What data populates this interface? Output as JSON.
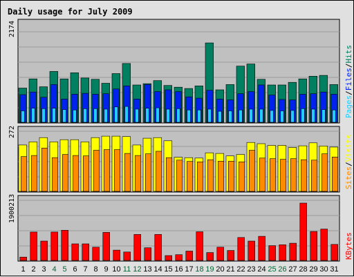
{
  "colors": {
    "frame_bg": "#e0e0e0",
    "panel_bg": "#c0c0c0",
    "grid": "#9a9a9a",
    "title": "#0000cc",
    "hits": "#008060",
    "files": "#0022ee",
    "pages": "#22ccff",
    "visits": "#ffff00",
    "sites": "#ff8c00",
    "kbytes": "#ff0000",
    "weekend_label": "#006633",
    "weekday_label": "#000000"
  },
  "labels": {
    "title": "Daily usage for July 2009",
    "max_hits": "2174",
    "max_visits": "272",
    "max_kbytes": "1900213",
    "pages": "Pages",
    "files": "Files",
    "hits": "Hits",
    "sites": "Sites",
    "visits": "Visits",
    "kbytes": "KBytes",
    "slash": "/"
  },
  "chart_data": {
    "type": "bar",
    "title": "Daily usage for July 2009",
    "categories": [
      "1",
      "2",
      "3",
      "4",
      "5",
      "6",
      "7",
      "8",
      "9",
      "10",
      "11",
      "12",
      "13",
      "14",
      "15",
      "16",
      "17",
      "18",
      "19",
      "20",
      "21",
      "22",
      "23",
      "24",
      "25",
      "26",
      "27",
      "28",
      "29",
      "30",
      "31"
    ],
    "weekend_days": [
      4,
      5,
      11,
      12,
      18,
      19,
      25,
      26
    ],
    "panels": [
      {
        "name": "hits-files-pages",
        "ymax": 2174,
        "ymax_label": "2174",
        "series": [
          {
            "name": "Hits",
            "values": [
              780,
              990,
              810,
              1160,
              990,
              1130,
              1010,
              980,
              890,
              1110,
              1340,
              850,
              880,
              950,
              840,
              800,
              770,
              830,
              1810,
              740,
              860,
              1280,
              1330,
              980,
              850,
              850,
              910,
              990,
              1050,
              1070,
              860
            ]
          },
          {
            "name": "Files",
            "values": [
              630,
              690,
              570,
              860,
              530,
              640,
              660,
              640,
              650,
              760,
              830,
              530,
              860,
              700,
              740,
              700,
              580,
              550,
              730,
              530,
              510,
              650,
              700,
              850,
              620,
              520,
              510,
              640,
              650,
              690,
              640
            ]
          },
          {
            "name": "Pages",
            "values": [
              260,
              320,
              310,
              320,
              290,
              280,
              310,
              310,
              300,
              350,
              360,
              300,
              320,
              330,
              300,
              310,
              280,
              280,
              300,
              250,
              260,
              280,
              300,
              300,
              270,
              260,
              270,
              310,
              300,
              290,
              280
            ]
          }
        ]
      },
      {
        "name": "visits-sites",
        "ymax": 272,
        "ymax_label": "272",
        "series": [
          {
            "name": "Visits",
            "values": [
              220,
              235,
              255,
              235,
              245,
              245,
              235,
              255,
              262,
              262,
              260,
              220,
              252,
              255,
              240,
              162,
              160,
              158,
              183,
              180,
              168,
              175,
              232,
              226,
              218,
              218,
              208,
              216,
              230,
              215,
              210
            ]
          },
          {
            "name": "Sites",
            "values": [
              165,
              170,
              205,
              160,
              175,
              170,
              168,
              195,
              198,
              198,
              180,
              170,
              178,
              190,
              160,
              148,
              142,
              140,
              150,
              143,
              143,
              140,
              195,
              158,
              155,
              152,
              155,
              150,
              148,
              178,
              163
            ]
          }
        ]
      },
      {
        "name": "kbytes",
        "ymax": 1900213,
        "ymax_label": "1900213",
        "series": [
          {
            "name": "KBytes",
            "values": [
              110000,
              940000,
              640000,
              940000,
              1000000,
              550000,
              550000,
              440000,
              930000,
              340000,
              280000,
              860000,
              420000,
              860000,
              160000,
              190000,
              310000,
              950000,
              260000,
              440000,
              330000,
              760000,
              640000,
              800000,
              490000,
              520000,
              570000,
              1900000,
              960000,
              1040000,
              530000
            ]
          }
        ]
      }
    ]
  }
}
